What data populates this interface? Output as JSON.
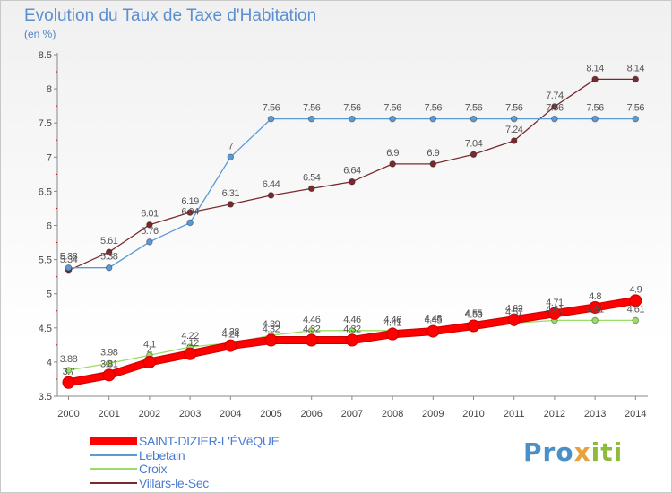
{
  "title": "Evolution du Taux de Taxe d'Habitation",
  "unit": "(en %)",
  "brand": {
    "text": "Proxiti",
    "colors": [
      "#4a90c8",
      "#e7a23a",
      "#8dbb3c"
    ]
  },
  "chart_data": {
    "type": "line",
    "title": "Evolution du Taux de Taxe d'Habitation",
    "ylabel": "(en %)",
    "xlabel": "",
    "x": [
      "2000",
      "2001",
      "2002",
      "2003",
      "2004",
      "2005",
      "2006",
      "2007",
      "2008",
      "2009",
      "2010",
      "2011",
      "2012",
      "2013",
      "2014"
    ],
    "ylim": [
      3.5,
      8.5
    ],
    "yticks": [
      "3.5",
      "4",
      "4.5",
      "5",
      "5.5",
      "6",
      "6.5",
      "7",
      "7.5",
      "8",
      "8.5"
    ],
    "grid": false,
    "legend": "bottom-left",
    "series": [
      {
        "name": "SAINT-DIZIER-L'ÉVêQUE",
        "color": "#ff0000",
        "values": [
          3.7,
          3.81,
          4.0,
          4.12,
          4.24,
          4.32,
          4.32,
          4.32,
          4.41,
          4.45,
          4.53,
          4.62,
          4.71,
          4.8,
          4.9
        ],
        "labels": [
          "3.7",
          "3.81",
          "4",
          "4.12",
          "4.24",
          "4.32",
          "4.32",
          "4.32",
          "4.41",
          "4.45",
          "4.53",
          "4.62",
          "4.71",
          "4.8",
          "4.9"
        ]
      },
      {
        "name": "Lebetain",
        "color": "#5b9bd5",
        "values": [
          5.38,
          5.38,
          5.76,
          6.04,
          7,
          7.56,
          7.56,
          7.56,
          7.56,
          7.56,
          7.56,
          7.56,
          7.56,
          7.56,
          7.56
        ],
        "labels": [
          "5.38",
          "5.38",
          "5.76",
          "6.04",
          "7",
          "7.56",
          "7.56",
          "7.56",
          "7.56",
          "7.56",
          "7.56",
          "7.56",
          "7.56",
          "7.56",
          "7.56"
        ]
      },
      {
        "name": "Croix",
        "color": "#99dd66",
        "values": [
          3.88,
          3.98,
          4.1,
          4.22,
          4.28,
          4.39,
          4.46,
          4.46,
          4.46,
          4.48,
          4.55,
          4.57,
          4.61,
          4.61,
          4.61
        ],
        "labels": [
          "3.88",
          "3.98",
          "4.1",
          "4.22",
          "4.28",
          "4.39",
          "4.46",
          "4.46",
          "4.46",
          "4.48",
          "4.55",
          "4.57",
          "4.61",
          "4.61",
          "4.61"
        ]
      },
      {
        "name": "Villars-le-Sec",
        "color": "#7a2a2e",
        "values": [
          5.34,
          5.61,
          6.01,
          6.19,
          6.31,
          6.44,
          6.54,
          6.64,
          6.9,
          6.9,
          7.04,
          7.24,
          7.74,
          8.14,
          8.14
        ],
        "labels": [
          "5.34",
          "5.61",
          "6.01",
          "6.19",
          "6.31",
          "6.44",
          "6.54",
          "6.64",
          "6.9",
          "6.9",
          "7.04",
          "7.24",
          "7.74",
          "8.14",
          "8.14"
        ]
      }
    ]
  }
}
